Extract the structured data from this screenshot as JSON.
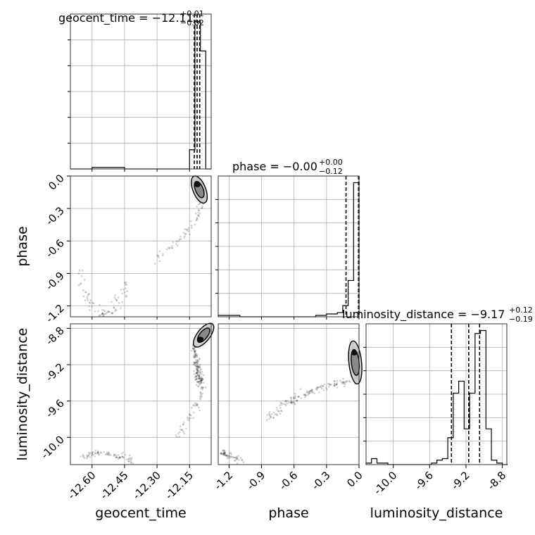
{
  "chart_data": {
    "type": "corner",
    "parameters": [
      {
        "name": "geocent_time",
        "range": [
          -12.7,
          -12.05
        ],
        "ticks": [
          "-12.60",
          "-12.45",
          "-12.30",
          "-12.15"
        ],
        "tick_values": [
          -12.6,
          -12.45,
          -12.3,
          -12.15
        ],
        "title": {
          "main": "geocent_time = −12.11",
          "upper": "+0.01",
          "lower": "−0.02"
        },
        "quantiles": [
          -12.128,
          -12.115,
          -12.103
        ]
      },
      {
        "name": "phase",
        "range": [
          -1.3,
          0.0
        ],
        "ticks": [
          "-1.2",
          "-0.9",
          "-0.6",
          "-0.3",
          "0.0"
        ],
        "tick_values": [
          -1.2,
          -0.9,
          -0.6,
          -0.3,
          0.0
        ],
        "title": {
          "main": "phase = −0.00",
          "upper": "+0.00",
          "lower": "−0.12"
        },
        "quantiles": [
          -0.12,
          -0.005,
          0.0
        ]
      },
      {
        "name": "luminosity_distance",
        "range": [
          -10.3,
          -8.75
        ],
        "ticks": [
          "-10.0",
          "-9.6",
          "-9.2",
          "-8.8"
        ],
        "tick_values": [
          -10.0,
          -9.6,
          -9.2,
          -8.8
        ],
        "title": {
          "main": "luminosity_distance = −9.17",
          "upper": "+0.12",
          "lower": "−0.19"
        },
        "quantiles": [
          -9.36,
          -9.17,
          -9.05
        ]
      }
    ],
    "hist_geocent_time": {
      "edges": [
        -12.7,
        -12.675,
        -12.65,
        -12.625,
        -12.6,
        -12.575,
        -12.55,
        -12.525,
        -12.5,
        -12.475,
        -12.45,
        -12.425,
        -12.4,
        -12.375,
        -12.35,
        -12.325,
        -12.3,
        -12.275,
        -12.25,
        -12.225,
        -12.2,
        -12.175,
        -12.15,
        -12.125,
        -12.1,
        -12.075,
        -12.05
      ],
      "counts": [
        0,
        0,
        0,
        0,
        1,
        1,
        1,
        1,
        1,
        1,
        0,
        0,
        0,
        0,
        0,
        0,
        0,
        0,
        0,
        0,
        0,
        0,
        13,
        100,
        80,
        0
      ]
    },
    "hist_phase": {
      "edges": [
        -1.3,
        -1.25,
        -1.2,
        -1.15,
        -1.1,
        -1.05,
        -1.0,
        -0.95,
        -0.9,
        -0.85,
        -0.8,
        -0.75,
        -0.7,
        -0.65,
        -0.6,
        -0.55,
        -0.5,
        -0.45,
        -0.4,
        -0.35,
        -0.3,
        -0.25,
        -0.2,
        -0.15,
        -0.1,
        -0.05,
        0.0
      ],
      "counts": [
        1,
        1,
        1,
        1,
        0,
        0,
        0,
        0,
        0,
        0,
        0,
        0,
        0,
        0,
        0,
        0,
        0,
        0,
        1,
        1,
        2,
        2,
        3,
        8,
        26,
        96
      ]
    },
    "hist_luminosity_distance": {
      "edges": [
        -10.3,
        -10.24,
        -10.18,
        -10.12,
        -10.06,
        -10.0,
        -9.94,
        -9.88,
        -9.82,
        -9.76,
        -9.7,
        -9.64,
        -9.58,
        -9.52,
        -9.46,
        -9.4,
        -9.34,
        -9.28,
        -9.22,
        -9.16,
        -9.1,
        -9.04,
        -8.98,
        -8.92,
        -8.86,
        -8.8,
        -8.74
      ],
      "counts": [
        1,
        4,
        1,
        1,
        0,
        0,
        0,
        0,
        0,
        0,
        0,
        0,
        1,
        3,
        4,
        18,
        48,
        56,
        24,
        48,
        88,
        90,
        24,
        3,
        1,
        0
      ]
    },
    "scatter_phase_vs_geocent_time": {
      "x_param": "geocent_time",
      "y_param": "phase",
      "clusters": [
        {
          "path": [
            [
              -12.67,
              -0.85
            ],
            [
              -12.64,
              -1.05
            ],
            [
              -12.6,
              -1.2
            ],
            [
              -12.55,
              -1.27
            ],
            [
              -12.51,
              -1.25
            ],
            [
              -12.47,
              -1.12
            ],
            [
              -12.44,
              -1.0
            ]
          ],
          "count": 80,
          "spread": [
            0.012,
            0.03
          ]
        },
        {
          "path": [
            [
              -12.3,
              -0.75
            ],
            [
              -12.24,
              -0.65
            ],
            [
              -12.18,
              -0.55
            ],
            [
              -12.13,
              -0.45
            ],
            [
              -12.1,
              -0.3
            ],
            [
              -12.09,
              -0.15
            ]
          ],
          "count": 70,
          "spread": [
            0.008,
            0.025
          ]
        },
        {
          "path": [
            [
              -12.12,
              -0.05
            ],
            [
              -12.11,
              -0.08
            ],
            [
              -12.1,
              -0.12
            ],
            [
              -12.09,
              -0.2
            ]
          ],
          "count": 150,
          "spread": [
            0.008,
            0.02
          ]
        }
      ]
    },
    "scatter_luminosity_distance_vs_geocent_time": {
      "x_param": "geocent_time",
      "y_param": "luminosity_distance",
      "clusters": [
        {
          "path": [
            [
              -12.65,
              -10.22
            ],
            [
              -12.6,
              -10.18
            ],
            [
              -12.55,
              -10.17
            ],
            [
              -12.5,
              -10.2
            ],
            [
              -12.45,
              -10.22
            ],
            [
              -12.42,
              -10.28
            ]
          ],
          "count": 80,
          "spread": [
            0.01,
            0.015
          ]
        },
        {
          "path": [
            [
              -12.2,
              -10.0
            ],
            [
              -12.17,
              -9.85
            ],
            [
              -12.13,
              -9.7
            ],
            [
              -12.1,
              -9.55
            ],
            [
              -12.09,
              -9.45
            ]
          ],
          "count": 50,
          "spread": [
            0.008,
            0.02
          ]
        },
        {
          "path": [
            [
              -12.13,
              -9.0
            ],
            [
              -12.12,
              -9.15
            ],
            [
              -12.11,
              -9.3
            ],
            [
              -12.1,
              -9.4
            ]
          ],
          "count": 160,
          "spread": [
            0.008,
            0.03
          ]
        },
        {
          "path": [
            [
              -12.11,
              -8.95
            ],
            [
              -12.08,
              -8.85
            ],
            [
              -12.06,
              -8.8
            ]
          ],
          "count": 40,
          "spread": [
            0.006,
            0.02
          ]
        }
      ]
    },
    "scatter_luminosity_distance_vs_phase": {
      "x_param": "phase",
      "y_param": "luminosity_distance",
      "clusters": [
        {
          "path": [
            [
              -1.3,
              -10.15
            ],
            [
              -1.2,
              -10.2
            ],
            [
              -1.1,
              -10.25
            ]
          ],
          "count": 60,
          "spread": [
            0.02,
            0.02
          ]
        },
        {
          "path": [
            [
              -0.85,
              -9.8
            ],
            [
              -0.7,
              -9.65
            ],
            [
              -0.55,
              -9.55
            ],
            [
              -0.4,
              -9.47
            ],
            [
              -0.25,
              -9.42
            ],
            [
              -0.1,
              -9.38
            ]
          ],
          "count": 140,
          "spread": [
            0.03,
            0.02
          ]
        },
        {
          "path": [
            [
              -0.05,
              -9.0
            ],
            [
              -0.03,
              -9.2
            ],
            [
              -0.02,
              -9.35
            ]
          ],
          "count": 120,
          "spread": [
            0.015,
            0.03
          ]
        }
      ]
    },
    "grid": true
  }
}
